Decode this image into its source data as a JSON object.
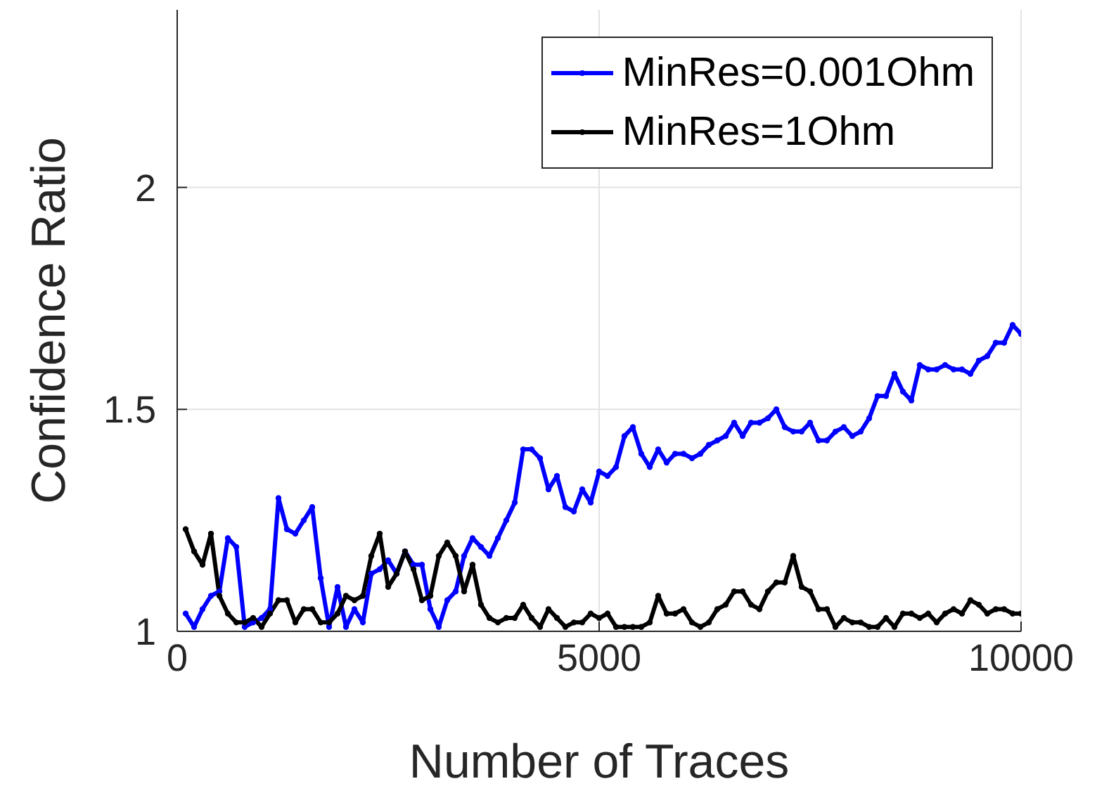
{
  "chart_data": {
    "type": "line",
    "xlabel": "Number of Traces",
    "ylabel": "Confidence Ratio",
    "x": [
      100,
      200,
      300,
      400,
      500,
      600,
      700,
      800,
      900,
      1000,
      1100,
      1200,
      1300,
      1400,
      1500,
      1600,
      1700,
      1800,
      1900,
      2000,
      2100,
      2200,
      2300,
      2400,
      2500,
      2600,
      2700,
      2800,
      2900,
      3000,
      3100,
      3200,
      3300,
      3400,
      3500,
      3600,
      3700,
      3800,
      3900,
      4000,
      4100,
      4200,
      4300,
      4400,
      4500,
      4600,
      4700,
      4800,
      4900,
      5000,
      5100,
      5200,
      5300,
      5400,
      5500,
      5600,
      5700,
      5800,
      5900,
      6000,
      6100,
      6200,
      6300,
      6400,
      6500,
      6600,
      6700,
      6800,
      6900,
      7000,
      7100,
      7200,
      7300,
      7400,
      7500,
      7600,
      7700,
      7800,
      7900,
      8000,
      8100,
      8200,
      8300,
      8400,
      8500,
      8600,
      8700,
      8800,
      8900,
      9000,
      9100,
      9200,
      9300,
      9400,
      9500,
      9600,
      9700,
      9800,
      9900,
      10000
    ],
    "series": [
      {
        "name": "MinRes=0.001Ohm",
        "color": "#0000ff",
        "values": [
          1.04,
          1.01,
          1.05,
          1.08,
          1.09,
          1.21,
          1.19,
          1.01,
          1.02,
          1.03,
          1.05,
          1.3,
          1.23,
          1.22,
          1.25,
          1.28,
          1.12,
          1.01,
          1.1,
          1.01,
          1.05,
          1.02,
          1.13,
          1.14,
          1.16,
          1.13,
          1.18,
          1.15,
          1.15,
          1.05,
          1.01,
          1.07,
          1.09,
          1.17,
          1.21,
          1.19,
          1.17,
          1.21,
          1.25,
          1.29,
          1.41,
          1.41,
          1.39,
          1.32,
          1.35,
          1.28,
          1.27,
          1.32,
          1.29,
          1.36,
          1.35,
          1.37,
          1.44,
          1.46,
          1.4,
          1.37,
          1.41,
          1.38,
          1.4,
          1.4,
          1.39,
          1.4,
          1.42,
          1.43,
          1.44,
          1.47,
          1.44,
          1.47,
          1.47,
          1.48,
          1.5,
          1.46,
          1.45,
          1.45,
          1.47,
          1.43,
          1.43,
          1.45,
          1.46,
          1.44,
          1.45,
          1.48,
          1.53,
          1.53,
          1.58,
          1.54,
          1.52,
          1.6,
          1.59,
          1.59,
          1.6,
          1.59,
          1.59,
          1.58,
          1.61,
          1.62,
          1.65,
          1.65,
          1.69,
          1.67
        ]
      },
      {
        "name": "MinRes=1Ohm",
        "color": "#000000",
        "values": [
          1.23,
          1.18,
          1.15,
          1.22,
          1.08,
          1.04,
          1.02,
          1.02,
          1.03,
          1.01,
          1.04,
          1.07,
          1.07,
          1.02,
          1.05,
          1.05,
          1.02,
          1.02,
          1.04,
          1.08,
          1.07,
          1.08,
          1.17,
          1.22,
          1.1,
          1.13,
          1.18,
          1.14,
          1.07,
          1.08,
          1.17,
          1.2,
          1.17,
          1.09,
          1.15,
          1.06,
          1.03,
          1.02,
          1.03,
          1.03,
          1.06,
          1.03,
          1.01,
          1.05,
          1.03,
          1.01,
          1.02,
          1.02,
          1.04,
          1.03,
          1.04,
          1.01,
          1.01,
          1.01,
          1.01,
          1.02,
          1.08,
          1.04,
          1.04,
          1.05,
          1.02,
          1.01,
          1.02,
          1.05,
          1.06,
          1.09,
          1.09,
          1.06,
          1.05,
          1.09,
          1.11,
          1.11,
          1.17,
          1.1,
          1.09,
          1.05,
          1.05,
          1.01,
          1.03,
          1.02,
          1.02,
          1.01,
          1.01,
          1.03,
          1.01,
          1.04,
          1.04,
          1.03,
          1.04,
          1.02,
          1.04,
          1.05,
          1.04,
          1.07,
          1.06,
          1.04,
          1.05,
          1.05,
          1.04,
          1.04
        ]
      }
    ],
    "xlim": [
      0,
      10000
    ],
    "xticks": [
      0,
      5000,
      10000
    ],
    "ylim": [
      1,
      2.4
    ],
    "yticks": [
      1,
      1.5,
      2
    ],
    "grid": true,
    "legend": "top right",
    "marker": "circle",
    "line_style": "solid"
  }
}
